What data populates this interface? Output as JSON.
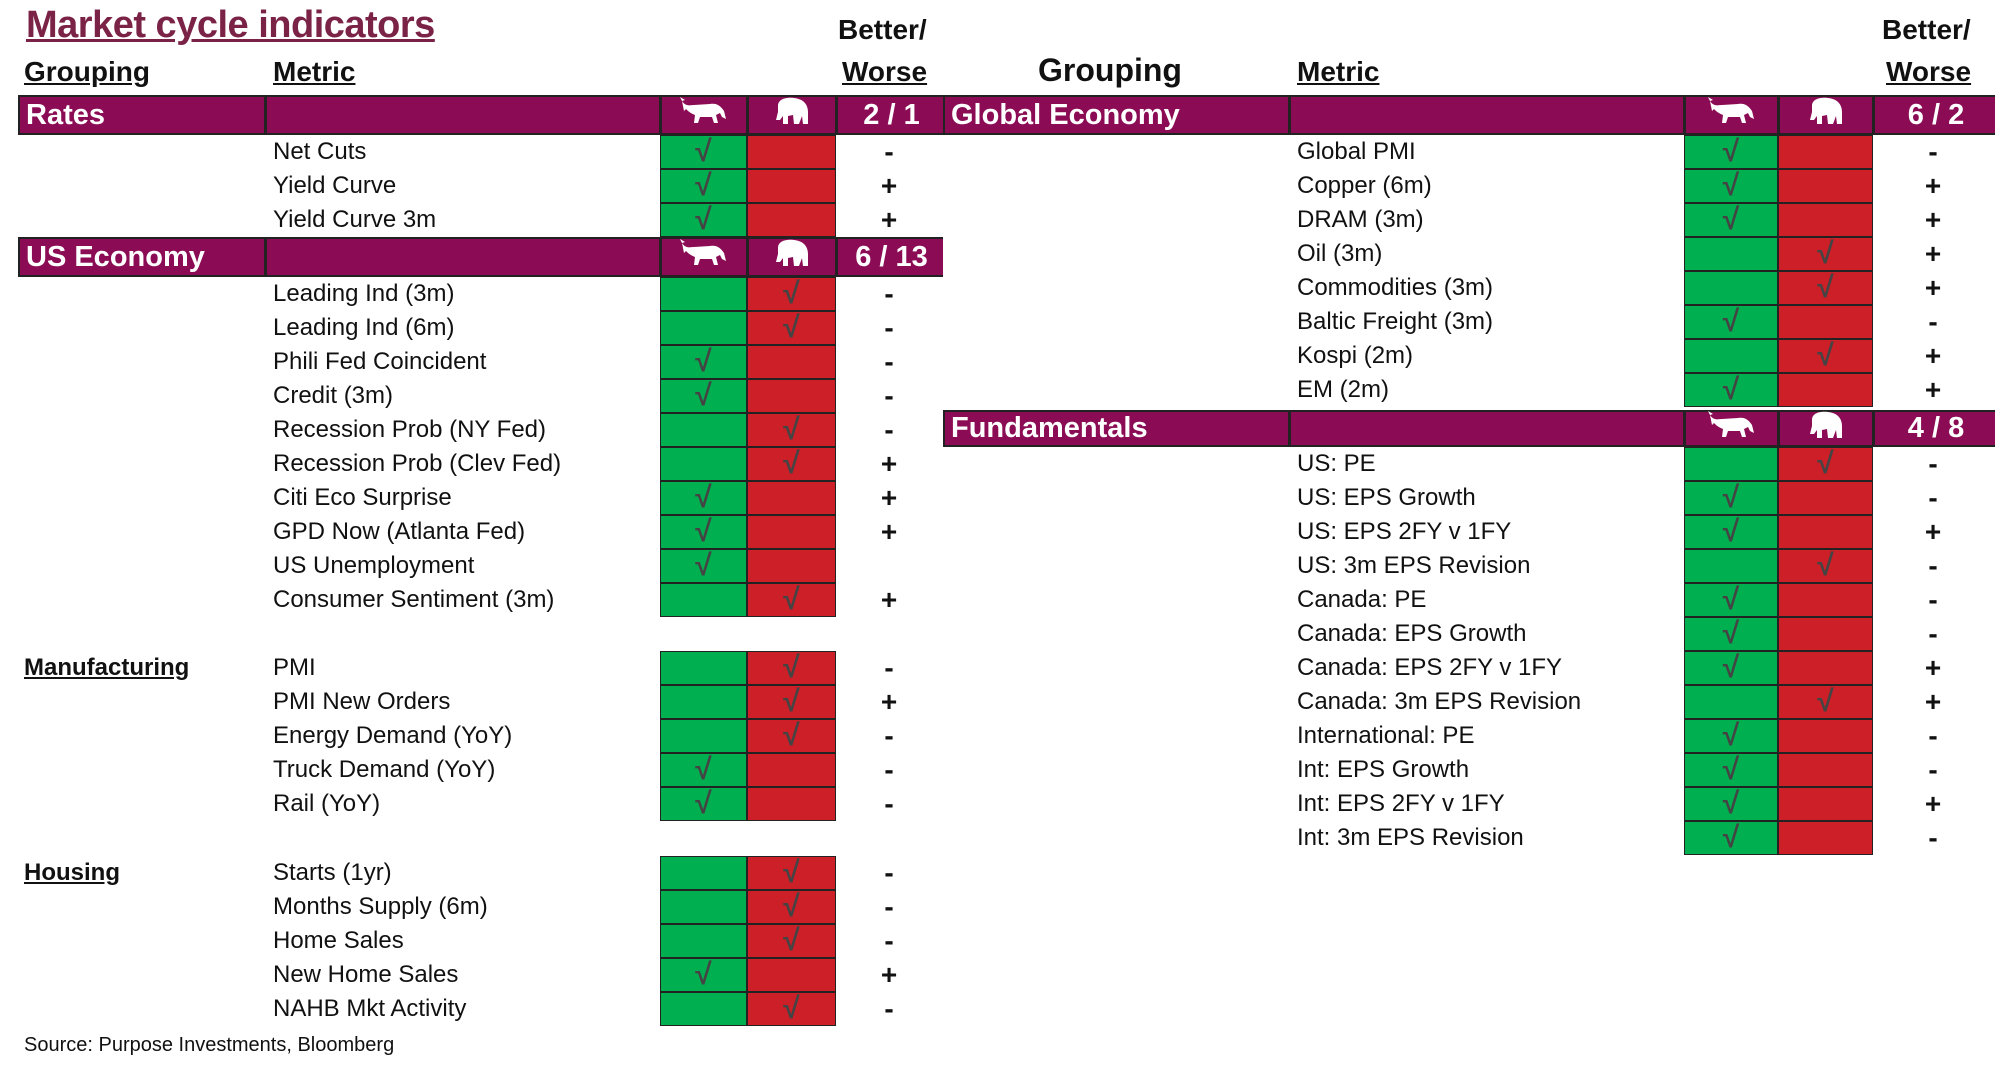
{
  "title": "Market cycle indicators",
  "headers": {
    "left_grouping": "Grouping",
    "left_metric": "Metric",
    "left_better": "Better/",
    "left_worse": "Worse",
    "right_grouping": "Grouping",
    "right_metric": "Metric",
    "right_better": "Better/",
    "right_worse": "Worse"
  },
  "colors": {
    "header_bar": "#8b0c55",
    "bull": "#00b050",
    "bear": "#cc1f27",
    "title": "#7a2346"
  },
  "icons": {
    "bull": "bull-icon",
    "bear": "bear-icon",
    "signal": "check-icon"
  },
  "sections": [
    {
      "side": "left",
      "title": "Rates",
      "score": "2 / 1",
      "bar": true,
      "rows": [
        {
          "metric": "Net Cuts",
          "signal": "bull",
          "change": "-"
        },
        {
          "metric": "Yield Curve",
          "signal": "bull",
          "change": "+"
        },
        {
          "metric": "Yield Curve 3m",
          "signal": "bull",
          "change": "+"
        }
      ]
    },
    {
      "side": "left",
      "title": "US Economy",
      "score": "6 / 13",
      "bar": true,
      "rows": [
        {
          "metric": "Leading Ind (3m)",
          "signal": "bear",
          "change": "-"
        },
        {
          "metric": "Leading Ind (6m)",
          "signal": "bear",
          "change": "-"
        },
        {
          "metric": "Phili Fed Coincident",
          "signal": "bull",
          "change": "-"
        },
        {
          "metric": "Credit (3m)",
          "signal": "bull",
          "change": "-"
        },
        {
          "metric": "Recession Prob (NY Fed)",
          "signal": "bear",
          "change": "-"
        },
        {
          "metric": "Recession Prob (Clev Fed)",
          "signal": "bear",
          "change": "+"
        },
        {
          "metric": "Citi Eco Surprise",
          "signal": "bull",
          "change": "+"
        },
        {
          "metric": "GPD Now (Atlanta Fed)",
          "signal": "bull",
          "change": "+"
        },
        {
          "metric": "US Unemployment",
          "signal": "bull",
          "change": ""
        },
        {
          "metric": "Consumer Sentiment (3m)",
          "signal": "bear",
          "change": "+"
        }
      ]
    },
    {
      "side": "left",
      "title": "Manufacturing",
      "bar": false,
      "rows": [
        {
          "metric": "PMI",
          "signal": "bear",
          "change": "-"
        },
        {
          "metric": "PMI New Orders",
          "signal": "bear",
          "change": "+"
        },
        {
          "metric": "Energy Demand (YoY)",
          "signal": "bear",
          "change": "-"
        },
        {
          "metric": "Truck Demand (YoY)",
          "signal": "bull",
          "change": "-"
        },
        {
          "metric": "Rail (YoY)",
          "signal": "bull",
          "change": "-"
        }
      ]
    },
    {
      "side": "left",
      "title": "Housing",
      "bar": false,
      "rows": [
        {
          "metric": "Starts (1yr)",
          "signal": "bear",
          "change": "-"
        },
        {
          "metric": "Months Supply (6m)",
          "signal": "bear",
          "change": "-"
        },
        {
          "metric": "Home Sales",
          "signal": "bear",
          "change": "-"
        },
        {
          "metric": "New Home Sales",
          "signal": "bull",
          "change": "+"
        },
        {
          "metric": "NAHB Mkt Activity",
          "signal": "bear",
          "change": "-"
        }
      ]
    },
    {
      "side": "right",
      "title": "Global Economy",
      "score": "6 / 2",
      "bar": true,
      "rows": [
        {
          "metric": "Global PMI",
          "signal": "bull",
          "change": "-"
        },
        {
          "metric": "Copper (6m)",
          "signal": "bull",
          "change": "+"
        },
        {
          "metric": "DRAM (3m)",
          "signal": "bull",
          "change": "+"
        },
        {
          "metric": "Oil (3m)",
          "signal": "bear",
          "change": "+"
        },
        {
          "metric": "Commodities (3m)",
          "signal": "bear",
          "change": "+"
        },
        {
          "metric": "Baltic Freight (3m)",
          "signal": "bull",
          "change": "-"
        },
        {
          "metric": "Kospi (2m)",
          "signal": "bear",
          "change": "+"
        },
        {
          "metric": "EM (2m)",
          "signal": "bull",
          "change": "+"
        }
      ]
    },
    {
      "side": "right",
      "title": "Fundamentals",
      "score": "4 / 8",
      "bar": true,
      "rows": [
        {
          "metric": "US: PE",
          "signal": "bear",
          "change": "-"
        },
        {
          "metric": "US: EPS Growth",
          "signal": "bull",
          "change": "-"
        },
        {
          "metric": "US: EPS 2FY v 1FY",
          "signal": "bull",
          "change": "+"
        },
        {
          "metric": "US: 3m EPS Revision",
          "signal": "bear",
          "change": "-"
        },
        {
          "metric": "Canada: PE",
          "signal": "bull",
          "change": "-"
        },
        {
          "metric": "Canada: EPS Growth",
          "signal": "bull",
          "change": "-"
        },
        {
          "metric": "Canada: EPS 2FY v 1FY",
          "signal": "bull",
          "change": "+"
        },
        {
          "metric": "Canada: 3m EPS Revision",
          "signal": "bear",
          "change": "+"
        },
        {
          "metric": "International: PE",
          "signal": "bull",
          "change": "-"
        },
        {
          "metric": "Int: EPS Growth",
          "signal": "bull",
          "change": "-"
        },
        {
          "metric": "Int: EPS 2FY v 1FY",
          "signal": "bull",
          "change": "+"
        },
        {
          "metric": "Int: 3m EPS Revision",
          "signal": "bull",
          "change": "-"
        }
      ]
    }
  ],
  "source": "Source: Purpose Investments, Bloomberg"
}
